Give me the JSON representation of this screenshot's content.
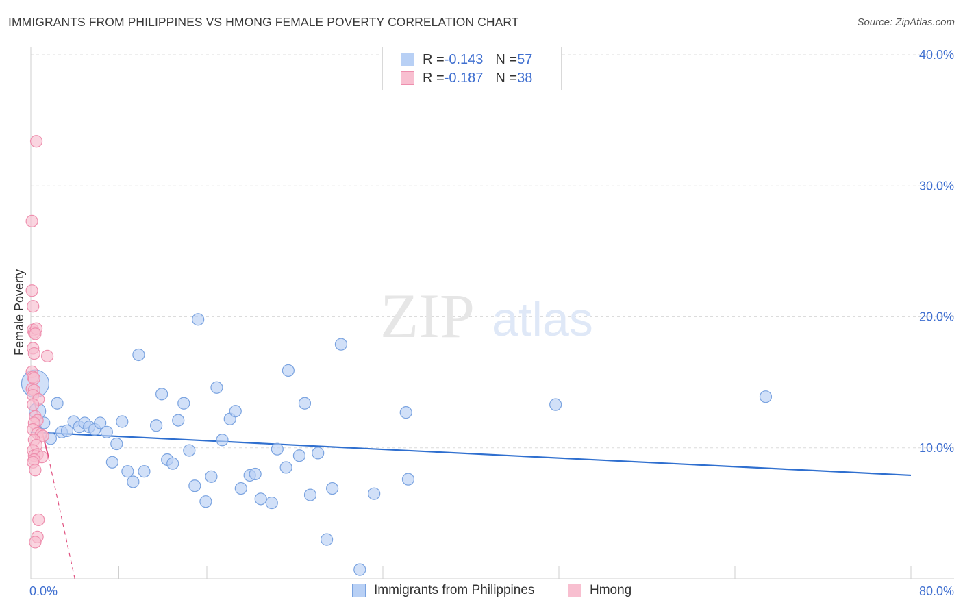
{
  "title": "IMMIGRANTS FROM PHILIPPINES VS HMONG FEMALE POVERTY CORRELATION CHART",
  "source": "Source: ZipAtlas.com",
  "watermark": {
    "zip": "ZIP",
    "atlas": "atlas"
  },
  "colors": {
    "blue_fill": "#b8d0f5",
    "blue_stroke": "#7aa3e0",
    "blue_line": "#2f6fcf",
    "pink_fill": "#f8bfd0",
    "pink_stroke": "#ee8fae",
    "pink_line": "#e0507f",
    "axis_text": "#3f6fd0",
    "grid": "#dcdcdc"
  },
  "legend": {
    "r_label": "R = ",
    "n_label": "N = ",
    "rows": [
      {
        "name": "Immigrants from Philippines",
        "r": "-0.143",
        "n": "57"
      },
      {
        "name": "Hmong",
        "r": "-0.187",
        "n": "38"
      }
    ]
  },
  "chart_data": {
    "type": "scatter",
    "title": "IMMIGRANTS FROM PHILIPPINES VS HMONG FEMALE POVERTY CORRELATION CHART",
    "xlabel": "",
    "ylabel": "Female Poverty",
    "xlim": [
      0,
      80
    ],
    "ylim": [
      0,
      40
    ],
    "x_tick_labels": [
      "0.0%",
      "80.0%"
    ],
    "y_ticks": [
      10,
      20,
      30,
      40
    ],
    "y_tick_labels": [
      "10.0%",
      "20.0%",
      "30.0%",
      "40.0%"
    ],
    "grid": true,
    "series": [
      {
        "name": "Immigrants from Philippines",
        "color": "#7aa3e0",
        "points": [
          [
            0.4,
            14.9
          ],
          [
            0.6,
            12.8
          ],
          [
            1.2,
            11.9
          ],
          [
            1.8,
            10.7
          ],
          [
            2.4,
            13.4
          ],
          [
            2.8,
            11.2
          ],
          [
            3.3,
            11.3
          ],
          [
            3.9,
            12.0
          ],
          [
            4.4,
            11.6
          ],
          [
            4.9,
            11.9
          ],
          [
            5.3,
            11.6
          ],
          [
            5.8,
            11.4
          ],
          [
            6.3,
            11.9
          ],
          [
            6.9,
            11.2
          ],
          [
            7.4,
            8.9
          ],
          [
            7.8,
            10.3
          ],
          [
            8.3,
            12.0
          ],
          [
            8.8,
            8.2
          ],
          [
            9.3,
            7.4
          ],
          [
            9.8,
            17.1
          ],
          [
            10.3,
            8.2
          ],
          [
            11.4,
            11.7
          ],
          [
            11.9,
            14.1
          ],
          [
            12.4,
            9.1
          ],
          [
            12.9,
            8.8
          ],
          [
            13.4,
            12.1
          ],
          [
            13.9,
            13.4
          ],
          [
            14.4,
            9.8
          ],
          [
            14.9,
            7.1
          ],
          [
            15.2,
            19.8
          ],
          [
            15.9,
            5.9
          ],
          [
            16.4,
            7.8
          ],
          [
            16.9,
            14.6
          ],
          [
            17.4,
            10.6
          ],
          [
            18.1,
            12.2
          ],
          [
            18.6,
            12.8
          ],
          [
            19.1,
            6.9
          ],
          [
            19.9,
            7.9
          ],
          [
            20.4,
            8.0
          ],
          [
            20.9,
            6.1
          ],
          [
            21.9,
            5.8
          ],
          [
            22.4,
            9.9
          ],
          [
            23.2,
            8.5
          ],
          [
            23.4,
            15.9
          ],
          [
            24.4,
            9.4
          ],
          [
            24.9,
            13.4
          ],
          [
            25.4,
            6.4
          ],
          [
            26.1,
            9.6
          ],
          [
            26.9,
            3.0
          ],
          [
            27.4,
            6.9
          ],
          [
            28.2,
            17.9
          ],
          [
            29.9,
            0.7
          ],
          [
            31.2,
            6.5
          ],
          [
            34.1,
            12.7
          ],
          [
            34.3,
            7.6
          ],
          [
            47.7,
            13.3
          ],
          [
            66.8,
            13.9
          ]
        ],
        "fit": {
          "x": [
            0,
            80
          ],
          "y": [
            11.2,
            7.9
          ]
        }
      },
      {
        "name": "Hmong",
        "color": "#ee8fae",
        "points": [
          [
            0.5,
            33.4
          ],
          [
            0.1,
            27.3
          ],
          [
            0.1,
            22.0
          ],
          [
            0.2,
            20.8
          ],
          [
            0.2,
            19.0
          ],
          [
            0.3,
            18.8
          ],
          [
            0.5,
            19.1
          ],
          [
            0.4,
            18.7
          ],
          [
            0.2,
            17.6
          ],
          [
            0.3,
            17.2
          ],
          [
            1.5,
            17.0
          ],
          [
            0.1,
            15.8
          ],
          [
            0.2,
            15.4
          ],
          [
            0.3,
            15.3
          ],
          [
            0.1,
            14.5
          ],
          [
            0.3,
            14.4
          ],
          [
            0.2,
            14.0
          ],
          [
            0.7,
            13.7
          ],
          [
            0.2,
            13.3
          ],
          [
            0.4,
            12.4
          ],
          [
            0.6,
            12.1
          ],
          [
            0.3,
            11.9
          ],
          [
            0.2,
            11.4
          ],
          [
            0.6,
            11.1
          ],
          [
            0.9,
            11.0
          ],
          [
            1.1,
            10.9
          ],
          [
            0.3,
            10.6
          ],
          [
            0.5,
            10.2
          ],
          [
            0.2,
            9.8
          ],
          [
            0.3,
            9.4
          ],
          [
            0.6,
            9.5
          ],
          [
            1.0,
            9.3
          ],
          [
            0.3,
            9.1
          ],
          [
            0.2,
            8.9
          ],
          [
            0.4,
            8.3
          ],
          [
            0.7,
            4.5
          ],
          [
            0.6,
            3.2
          ],
          [
            0.4,
            2.8
          ]
        ],
        "fit_solid": {
          "x": [
            0,
            1.6
          ],
          "y": [
            14.6,
            9.3
          ]
        },
        "fit_dashed": {
          "x": [
            1.6,
            4.0
          ],
          "y": [
            9.3,
            0.0
          ]
        }
      }
    ]
  }
}
